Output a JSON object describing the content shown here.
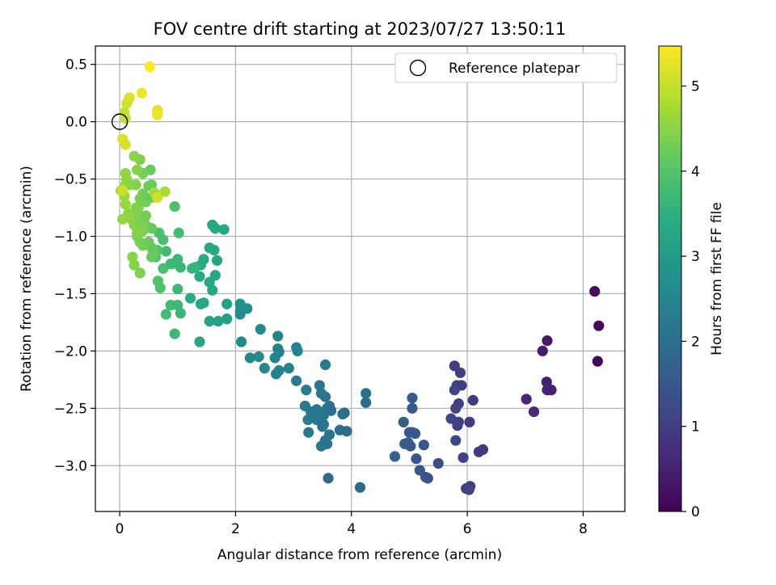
{
  "chart_data": {
    "type": "scatter",
    "title": "FOV centre drift starting at 2023/07/27 13:50:11",
    "xlabel": "Angular distance from reference (arcmin)",
    "ylabel": "Rotation from reference (arcmin)",
    "xlim": [
      -0.42,
      8.72
    ],
    "ylim": [
      -3.4,
      0.66
    ],
    "xticks": [
      0,
      2,
      4,
      6,
      8
    ],
    "yticks": [
      -3.0,
      -2.5,
      -2.0,
      -1.5,
      -1.0,
      -0.5,
      0.0,
      0.5
    ],
    "xtick_labels": [
      "0",
      "2",
      "4",
      "6",
      "8"
    ],
    "ytick_labels": [
      "−3.0",
      "−2.5",
      "−2.0",
      "−1.5",
      "−1.0",
      "−0.5",
      "0.0",
      "0.5"
    ],
    "grid": true,
    "colormap": "viridis",
    "legend": {
      "position": "upper right",
      "label": "Reference platepar"
    },
    "colorbar": {
      "label": "Hours from first FF file",
      "range": [
        0,
        5.47
      ],
      "ticks": [
        0,
        1,
        2,
        3,
        4,
        5
      ],
      "tick_labels": [
        "0",
        "1",
        "2",
        "3",
        "4",
        "5"
      ]
    },
    "reference_point": {
      "x": 0.0,
      "y": 0.0
    },
    "points": [
      {
        "x": 8.2,
        "y": -1.48,
        "c": 0.15
      },
      {
        "x": 8.27,
        "y": -1.78,
        "c": 0.12
      },
      {
        "x": 8.25,
        "y": -2.09,
        "c": 0.1
      },
      {
        "x": 7.38,
        "y": -1.91,
        "c": 0.4
      },
      {
        "x": 7.3,
        "y": -2.0,
        "c": 0.45
      },
      {
        "x": 7.37,
        "y": -2.27,
        "c": 0.5
      },
      {
        "x": 7.38,
        "y": -2.34,
        "c": 0.55
      },
      {
        "x": 7.45,
        "y": -2.34,
        "c": 0.5
      },
      {
        "x": 7.02,
        "y": -2.42,
        "c": 0.6
      },
      {
        "x": 7.15,
        "y": -2.53,
        "c": 0.65
      },
      {
        "x": 5.78,
        "y": -2.13,
        "c": 1.0
      },
      {
        "x": 5.88,
        "y": -2.19,
        "c": 1.05
      },
      {
        "x": 5.82,
        "y": -2.3,
        "c": 1.1
      },
      {
        "x": 5.9,
        "y": -2.3,
        "c": 1.0
      },
      {
        "x": 5.78,
        "y": -2.34,
        "c": 1.15
      },
      {
        "x": 6.1,
        "y": -2.43,
        "c": 0.95
      },
      {
        "x": 5.85,
        "y": -2.46,
        "c": 1.05
      },
      {
        "x": 5.8,
        "y": -2.5,
        "c": 1.1
      },
      {
        "x": 5.72,
        "y": -2.59,
        "c": 1.2
      },
      {
        "x": 5.85,
        "y": -2.62,
        "c": 1.0
      },
      {
        "x": 5.83,
        "y": -2.65,
        "c": 1.05
      },
      {
        "x": 6.04,
        "y": -2.62,
        "c": 1.0
      },
      {
        "x": 5.8,
        "y": -2.78,
        "c": 1.2
      },
      {
        "x": 6.27,
        "y": -2.86,
        "c": 0.9
      },
      {
        "x": 6.2,
        "y": -2.88,
        "c": 0.95
      },
      {
        "x": 5.93,
        "y": -2.93,
        "c": 1.1
      },
      {
        "x": 6.05,
        "y": -3.18,
        "c": 1.0
      },
      {
        "x": 5.98,
        "y": -3.2,
        "c": 1.05
      },
      {
        "x": 6.03,
        "y": -3.21,
        "c": 1.1
      },
      {
        "x": 5.05,
        "y": -2.41,
        "c": 1.6
      },
      {
        "x": 5.05,
        "y": -2.5,
        "c": 1.55
      },
      {
        "x": 4.9,
        "y": -2.62,
        "c": 1.65
      },
      {
        "x": 5.0,
        "y": -2.71,
        "c": 1.6
      },
      {
        "x": 5.05,
        "y": -2.71,
        "c": 1.55
      },
      {
        "x": 5.1,
        "y": -2.72,
        "c": 1.5
      },
      {
        "x": 4.92,
        "y": -2.81,
        "c": 1.7
      },
      {
        "x": 4.98,
        "y": -2.8,
        "c": 1.6
      },
      {
        "x": 5.02,
        "y": -2.83,
        "c": 1.55
      },
      {
        "x": 5.25,
        "y": -2.82,
        "c": 1.45
      },
      {
        "x": 4.75,
        "y": -2.92,
        "c": 1.75
      },
      {
        "x": 5.12,
        "y": -2.94,
        "c": 1.5
      },
      {
        "x": 5.5,
        "y": -2.98,
        "c": 1.35
      },
      {
        "x": 5.18,
        "y": -3.04,
        "c": 1.5
      },
      {
        "x": 5.28,
        "y": -3.1,
        "c": 1.45
      },
      {
        "x": 5.32,
        "y": -3.11,
        "c": 1.4
      },
      {
        "x": 4.15,
        "y": -3.19,
        "c": 1.85
      },
      {
        "x": 3.05,
        "y": -1.97,
        "c": 2.35
      },
      {
        "x": 3.07,
        "y": -2.0,
        "c": 2.4
      },
      {
        "x": 3.05,
        "y": -2.26,
        "c": 2.3
      },
      {
        "x": 3.55,
        "y": -2.12,
        "c": 2.2
      },
      {
        "x": 3.22,
        "y": -2.34,
        "c": 2.25
      },
      {
        "x": 3.45,
        "y": -2.3,
        "c": 2.2
      },
      {
        "x": 3.48,
        "y": -2.37,
        "c": 2.15
      },
      {
        "x": 3.55,
        "y": -2.4,
        "c": 2.1
      },
      {
        "x": 4.25,
        "y": -2.37,
        "c": 2.0
      },
      {
        "x": 4.25,
        "y": -2.45,
        "c": 1.95
      },
      {
        "x": 3.2,
        "y": -2.48,
        "c": 2.25
      },
      {
        "x": 3.3,
        "y": -2.53,
        "c": 2.2
      },
      {
        "x": 3.4,
        "y": -2.51,
        "c": 2.2
      },
      {
        "x": 3.58,
        "y": -2.5,
        "c": 2.1
      },
      {
        "x": 3.62,
        "y": -2.48,
        "c": 2.05
      },
      {
        "x": 3.65,
        "y": -2.52,
        "c": 2.0
      },
      {
        "x": 3.52,
        "y": -2.56,
        "c": 2.1
      },
      {
        "x": 3.88,
        "y": -2.54,
        "c": 1.95
      },
      {
        "x": 3.85,
        "y": -2.55,
        "c": 2.0
      },
      {
        "x": 3.25,
        "y": -2.6,
        "c": 2.3
      },
      {
        "x": 3.4,
        "y": -2.6,
        "c": 2.2
      },
      {
        "x": 3.52,
        "y": -2.64,
        "c": 2.15
      },
      {
        "x": 3.5,
        "y": -2.66,
        "c": 2.1
      },
      {
        "x": 3.26,
        "y": -2.71,
        "c": 2.25
      },
      {
        "x": 3.8,
        "y": -2.69,
        "c": 2.0
      },
      {
        "x": 3.92,
        "y": -2.7,
        "c": 1.95
      },
      {
        "x": 3.62,
        "y": -2.73,
        "c": 2.05
      },
      {
        "x": 3.55,
        "y": -2.78,
        "c": 2.1
      },
      {
        "x": 3.58,
        "y": -2.81,
        "c": 2.05
      },
      {
        "x": 3.48,
        "y": -2.83,
        "c": 2.15
      },
      {
        "x": 3.6,
        "y": -3.11,
        "c": 1.9
      },
      {
        "x": 2.08,
        "y": -1.65,
        "c": 2.75
      },
      {
        "x": 2.08,
        "y": -1.68,
        "c": 2.7
      },
      {
        "x": 2.08,
        "y": -1.59,
        "c": 2.75
      },
      {
        "x": 2.2,
        "y": -1.63,
        "c": 2.7
      },
      {
        "x": 2.1,
        "y": -1.92,
        "c": 2.65
      },
      {
        "x": 2.43,
        "y": -1.81,
        "c": 2.6
      },
      {
        "x": 2.73,
        "y": -1.87,
        "c": 2.5
      },
      {
        "x": 2.73,
        "y": -1.98,
        "c": 2.5
      },
      {
        "x": 2.75,
        "y": -2.01,
        "c": 2.45
      },
      {
        "x": 2.68,
        "y": -2.06,
        "c": 2.5
      },
      {
        "x": 2.25,
        "y": -2.06,
        "c": 2.6
      },
      {
        "x": 2.4,
        "y": -2.05,
        "c": 2.55
      },
      {
        "x": 2.5,
        "y": -2.15,
        "c": 2.55
      },
      {
        "x": 2.75,
        "y": -2.17,
        "c": 2.45
      },
      {
        "x": 2.7,
        "y": -2.2,
        "c": 2.45
      },
      {
        "x": 2.92,
        "y": -2.15,
        "c": 2.4
      },
      {
        "x": 1.6,
        "y": -0.9,
        "c": 3.3
      },
      {
        "x": 1.65,
        "y": -0.93,
        "c": 3.3
      },
      {
        "x": 1.8,
        "y": -0.94,
        "c": 3.25
      },
      {
        "x": 1.55,
        "y": -1.1,
        "c": 3.35
      },
      {
        "x": 1.63,
        "y": -1.12,
        "c": 3.3
      },
      {
        "x": 1.45,
        "y": -1.2,
        "c": 3.35
      },
      {
        "x": 1.4,
        "y": -1.25,
        "c": 3.4
      },
      {
        "x": 1.68,
        "y": -1.21,
        "c": 3.25
      },
      {
        "x": 1.38,
        "y": -1.35,
        "c": 3.35
      },
      {
        "x": 1.55,
        "y": -1.4,
        "c": 3.3
      },
      {
        "x": 1.65,
        "y": -1.34,
        "c": 3.25
      },
      {
        "x": 1.6,
        "y": -1.47,
        "c": 3.3
      },
      {
        "x": 1.85,
        "y": -1.59,
        "c": 3.15
      },
      {
        "x": 1.45,
        "y": -1.58,
        "c": 3.3
      },
      {
        "x": 1.4,
        "y": -1.59,
        "c": 3.35
      },
      {
        "x": 1.55,
        "y": -1.74,
        "c": 3.2
      },
      {
        "x": 1.7,
        "y": -1.74,
        "c": 3.15
      },
      {
        "x": 1.85,
        "y": -1.72,
        "c": 3.1
      },
      {
        "x": 1.38,
        "y": -1.92,
        "c": 3.25
      },
      {
        "x": 1.22,
        "y": -1.54,
        "c": 3.4
      },
      {
        "x": 0.95,
        "y": -0.74,
        "c": 3.9
      },
      {
        "x": 1.02,
        "y": -0.97,
        "c": 3.8
      },
      {
        "x": 1.3,
        "y": -1.27,
        "c": 3.6
      },
      {
        "x": 1.25,
        "y": -1.28,
        "c": 3.6
      },
      {
        "x": 1.0,
        "y": -1.2,
        "c": 3.7
      },
      {
        "x": 1.05,
        "y": -1.27,
        "c": 3.65
      },
      {
        "x": 0.88,
        "y": -1.24,
        "c": 3.7
      },
      {
        "x": 0.8,
        "y": -1.13,
        "c": 3.75
      },
      {
        "x": 0.68,
        "y": -0.97,
        "c": 3.9
      },
      {
        "x": 0.75,
        "y": -1.03,
        "c": 3.85
      },
      {
        "x": 0.65,
        "y": -1.12,
        "c": 3.95
      },
      {
        "x": 0.62,
        "y": -1.18,
        "c": 4.0
      },
      {
        "x": 0.75,
        "y": -1.28,
        "c": 3.85
      },
      {
        "x": 0.66,
        "y": -1.39,
        "c": 3.95
      },
      {
        "x": 0.7,
        "y": -1.45,
        "c": 3.9
      },
      {
        "x": 0.88,
        "y": -1.6,
        "c": 3.75
      },
      {
        "x": 1.0,
        "y": -1.46,
        "c": 3.7
      },
      {
        "x": 1.0,
        "y": -1.6,
        "c": 3.7
      },
      {
        "x": 1.05,
        "y": -1.67,
        "c": 3.65
      },
      {
        "x": 0.8,
        "y": -1.68,
        "c": 3.8
      },
      {
        "x": 0.95,
        "y": -1.85,
        "c": 3.7
      },
      {
        "x": 0.9,
        "y": -1.24,
        "c": 3.7
      },
      {
        "x": 0.53,
        "y": -0.42,
        "c": 4.2
      },
      {
        "x": 0.4,
        "y": -0.45,
        "c": 4.3
      },
      {
        "x": 0.35,
        "y": -0.33,
        "c": 4.4
      },
      {
        "x": 0.25,
        "y": -0.3,
        "c": 4.5
      },
      {
        "x": 0.3,
        "y": -0.42,
        "c": 4.45
      },
      {
        "x": 0.1,
        "y": -0.45,
        "c": 4.6
      },
      {
        "x": 0.12,
        "y": -0.5,
        "c": 4.55
      },
      {
        "x": 0.1,
        "y": -0.55,
        "c": 4.6
      },
      {
        "x": 0.28,
        "y": -0.55,
        "c": 4.45
      },
      {
        "x": 0.18,
        "y": -0.55,
        "c": 4.5
      },
      {
        "x": 0.55,
        "y": -0.55,
        "c": 4.2
      },
      {
        "x": 0.5,
        "y": -0.56,
        "c": 4.25
      },
      {
        "x": 0.4,
        "y": -0.63,
        "c": 4.3
      },
      {
        "x": 0.35,
        "y": -0.67,
        "c": 4.35
      },
      {
        "x": 0.45,
        "y": -0.7,
        "c": 4.3
      },
      {
        "x": 0.4,
        "y": -0.68,
        "c": 4.3
      },
      {
        "x": 0.32,
        "y": -0.75,
        "c": 4.4
      },
      {
        "x": 0.55,
        "y": -0.66,
        "c": 4.2
      },
      {
        "x": 0.2,
        "y": -0.85,
        "c": 4.5
      },
      {
        "x": 0.25,
        "y": -0.9,
        "c": 4.45
      },
      {
        "x": 0.35,
        "y": -0.85,
        "c": 4.4
      },
      {
        "x": 0.45,
        "y": -0.9,
        "c": 4.3
      },
      {
        "x": 0.4,
        "y": -0.95,
        "c": 4.35
      },
      {
        "x": 0.55,
        "y": -0.93,
        "c": 4.2
      },
      {
        "x": 0.3,
        "y": -1.0,
        "c": 4.4
      },
      {
        "x": 0.35,
        "y": -1.05,
        "c": 4.35
      },
      {
        "x": 0.4,
        "y": -1.08,
        "c": 4.3
      },
      {
        "x": 0.5,
        "y": -1.05,
        "c": 4.25
      },
      {
        "x": 0.55,
        "y": -1.1,
        "c": 4.2
      },
      {
        "x": 0.58,
        "y": -1.15,
        "c": 4.15
      },
      {
        "x": 0.22,
        "y": -1.18,
        "c": 4.5
      },
      {
        "x": 0.25,
        "y": -1.25,
        "c": 4.45
      },
      {
        "x": 0.35,
        "y": -1.32,
        "c": 4.4
      },
      {
        "x": 0.55,
        "y": -1.18,
        "c": 4.2
      },
      {
        "x": 0.3,
        "y": -0.78,
        "c": 4.4
      },
      {
        "x": 0.15,
        "y": -0.8,
        "c": 4.55
      },
      {
        "x": 0.05,
        "y": -0.85,
        "c": 4.6
      },
      {
        "x": 0.1,
        "y": -0.72,
        "c": 4.6
      },
      {
        "x": 0.08,
        "y": -0.65,
        "c": 4.65
      },
      {
        "x": 0.02,
        "y": -0.6,
        "c": 4.7
      },
      {
        "x": 0.28,
        "y": -0.75,
        "c": 4.45
      },
      {
        "x": 0.45,
        "y": -0.82,
        "c": 4.3
      },
      {
        "x": 0.6,
        "y": -0.62,
        "c": 4.7
      },
      {
        "x": 0.65,
        "y": -0.66,
        "c": 5.1
      },
      {
        "x": 0.78,
        "y": -0.61,
        "c": 4.8
      },
      {
        "x": 0.4,
        "y": -0.92,
        "c": 4.4
      },
      {
        "x": 0.3,
        "y": -0.97,
        "c": 4.45
      },
      {
        "x": 0.52,
        "y": 0.48,
        "c": 5.45
      },
      {
        "x": 0.38,
        "y": 0.25,
        "c": 5.35
      },
      {
        "x": 0.17,
        "y": 0.21,
        "c": 5.2
      },
      {
        "x": 0.15,
        "y": 0.19,
        "c": 5.15
      },
      {
        "x": 0.12,
        "y": 0.16,
        "c": 5.1
      },
      {
        "x": 0.65,
        "y": 0.1,
        "c": 5.25
      },
      {
        "x": 0.65,
        "y": 0.06,
        "c": 5.3
      },
      {
        "x": 0.08,
        "y": 0.08,
        "c": 5.0
      },
      {
        "x": 0.1,
        "y": 0.03,
        "c": 5.05
      },
      {
        "x": 0.05,
        "y": -0.15,
        "c": 5.2
      },
      {
        "x": 0.1,
        "y": -0.2,
        "c": 5.15
      },
      {
        "x": 0.05,
        "y": -0.6,
        "c": 5.05
      }
    ]
  }
}
